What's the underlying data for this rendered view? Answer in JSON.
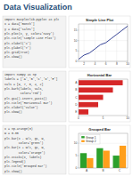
{
  "title": "Data Visualization",
  "sections": [
    {
      "code": [
        "import matplotlib.pyplot as plt",
        "x = data['month']",
        "y = data['sales']",
        "plt.plot(x, y, color='navy')",
        "plt.title('Simple Line Plot')",
        "plt.xlabel('X')",
        "plt.ylabel('Y')",
        "plt.grid(True)",
        "plt.show()"
      ]
    },
    {
      "code": [
        "import numpy as np",
        "labels = ['A','B','C','D','E']",
        "vals = [9, 7, 5, 4, 2]",
        "plt.barh(labels, vals,",
        "         color='red')",
        "plt.gca().invert_yaxis()",
        "plt.title('Horizontal Bar')",
        "plt.xlabel('Value')",
        "plt.show()"
      ]
    },
    {
      "code": [
        "x = np.arange(3)",
        "w = 0.35",
        "plt.bar(x - w/2, g1, w,",
        "        color='green')",
        "plt.bar(x + w/2, g2, w,",
        "        color='orange')",
        "plt.xticks(x, labels)",
        "plt.legend()",
        "plt.title('Grouped Bar')",
        "plt.show()"
      ]
    }
  ],
  "chart_data": [
    {
      "type": "line",
      "title": "Simple Line Plot",
      "x": [
        1,
        2,
        3,
        4,
        5,
        6,
        7,
        8,
        9,
        10
      ],
      "values": [
        1,
        3,
        4,
        6,
        8,
        9,
        11,
        13,
        15,
        17
      ],
      "color": "#1f2f8a",
      "xlim": [
        1,
        10
      ],
      "xticks": [
        2,
        4,
        6,
        8,
        10
      ],
      "ylim": [
        0,
        18
      ],
      "yticks": [
        0,
        5,
        10,
        15
      ],
      "grid": true
    },
    {
      "type": "bar",
      "orientation": "horizontal",
      "title": "Horizontal Bar",
      "categories": [
        "A",
        "B",
        "C",
        "D",
        "E"
      ],
      "values": [
        9,
        7,
        5,
        4,
        2
      ],
      "color": "#d62728",
      "xlim": [
        0,
        10
      ],
      "xticks": [
        0,
        5,
        10
      ],
      "grid": false
    },
    {
      "type": "bar",
      "title": "Grouped Bar",
      "categories": [
        "A",
        "B",
        "C"
      ],
      "series": [
        {
          "name": "Group 1",
          "color": "#2ca02c",
          "values": [
            6,
            8,
            5
          ]
        },
        {
          "name": "Group 2",
          "color": "#ff9f1c",
          "values": [
            4,
            7,
            9
          ]
        }
      ],
      "ylim": [
        0,
        14
      ],
      "yticks": [
        0,
        5,
        10
      ],
      "grid": true,
      "legend": "upper-left"
    }
  ]
}
